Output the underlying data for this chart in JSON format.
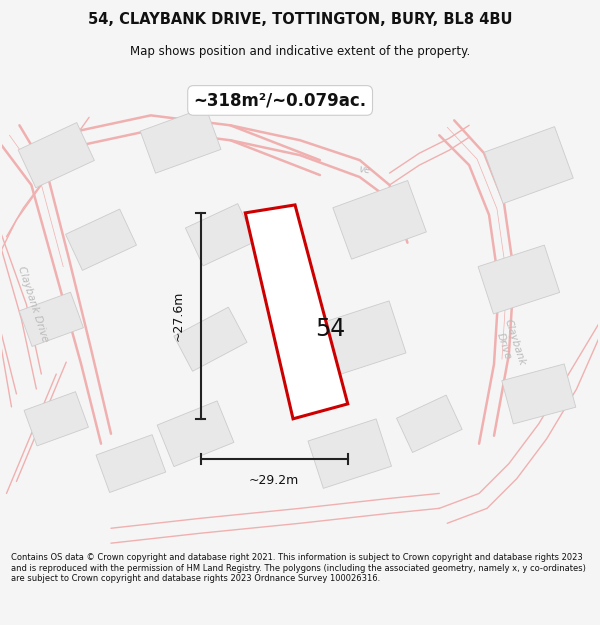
{
  "title_line1": "54, CLAYBANK DRIVE, TOTTINGTON, BURY, BL8 4BU",
  "title_line2": "Map shows position and indicative extent of the property.",
  "area_label": "~318m²/~0.079ac.",
  "property_number": "54",
  "dim_height": "~27.6m",
  "dim_width": "~29.2m",
  "footer_text": "Contains OS data © Crown copyright and database right 2021. This information is subject to Crown copyright and database rights 2023 and is reproduced with the permission of HM Land Registry. The polygons (including the associated geometry, namely x, y co-ordinates) are subject to Crown copyright and database rights 2023 Ordnance Survey 100026316.",
  "bg_color": "#f5f5f5",
  "map_bg": "#ffffff",
  "road_color": "#f0b0b0",
  "road_lw_main": 1.8,
  "road_lw_minor": 1.0,
  "building_face": "#e8e8e8",
  "building_edge": "#cccccc",
  "property_fill": "#ffffff",
  "property_edge": "#cc0000",
  "dim_line_color": "#222222",
  "road_label_color": "#bbbbbb",
  "text_color": "#111111"
}
